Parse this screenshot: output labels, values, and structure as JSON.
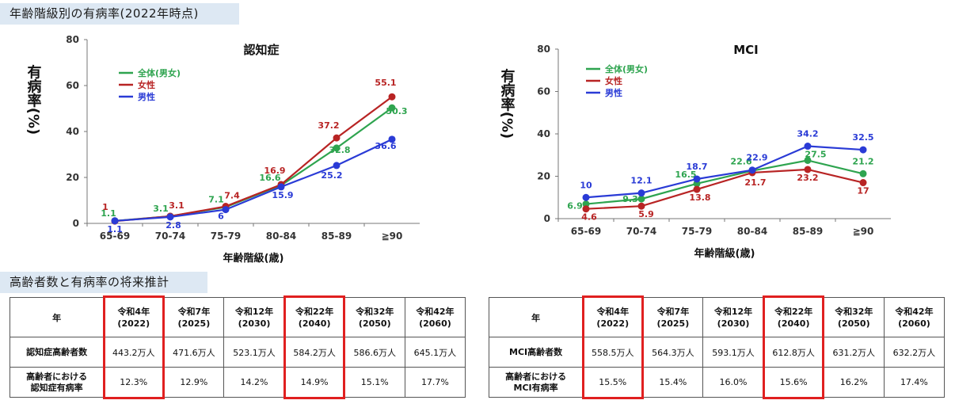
{
  "headings": {
    "prevalence": "年齢階級別の有病率(2022年時点)",
    "projection": "高齢者数と有病率の将来推計"
  },
  "colors": {
    "total": "#2ea44f",
    "female": "#b82424",
    "male": "#2a3bd6",
    "highlight": "#e02020"
  },
  "chart_data": [
    {
      "type": "line",
      "title": "認知症",
      "xlabel": "年齢階級(歳)",
      "ylabel": "有病率(%)",
      "categories": [
        "65-69",
        "70-74",
        "75-79",
        "80-84",
        "85-89",
        "≧90"
      ],
      "ylim": [
        0,
        80
      ],
      "yticks": [
        0,
        20,
        40,
        60,
        80
      ],
      "legend": "top-left",
      "series": [
        {
          "name": "全体(男女)",
          "color": "#2ea44f",
          "values": [
            1.1,
            3.1,
            7.1,
            16.6,
            32.8,
            50.3
          ]
        },
        {
          "name": "女性",
          "color": "#b82424",
          "values": [
            1.0,
            3.1,
            7.4,
            16.9,
            37.2,
            55.1
          ]
        },
        {
          "name": "男性",
          "color": "#2a3bd6",
          "values": [
            1.1,
            2.8,
            6.0,
            15.9,
            25.2,
            36.6
          ]
        }
      ]
    },
    {
      "type": "line",
      "title": "MCI",
      "xlabel": "年齢階級(歳)",
      "ylabel": "有病率(%)",
      "categories": [
        "65-69",
        "70-74",
        "75-79",
        "80-84",
        "85-89",
        "≧90"
      ],
      "ylim": [
        0,
        80
      ],
      "yticks": [
        0,
        20,
        40,
        60,
        80
      ],
      "legend": "top-left",
      "series": [
        {
          "name": "全体(男女)",
          "color": "#2ea44f",
          "values": [
            6.9,
            9.3,
            16.5,
            22.6,
            27.5,
            21.2
          ]
        },
        {
          "name": "女性",
          "color": "#b82424",
          "values": [
            4.6,
            5.9,
            13.8,
            21.7,
            23.2,
            17.0
          ]
        },
        {
          "name": "男性",
          "color": "#2a3bd6",
          "values": [
            10.0,
            12.1,
            18.7,
            22.9,
            34.2,
            32.5
          ]
        }
      ]
    }
  ],
  "tables": [
    {
      "year_header": "年",
      "years": [
        {
          "era": "令和4年",
          "ad": "(2022)"
        },
        {
          "era": "令和7年",
          "ad": "(2025)"
        },
        {
          "era": "令和12年",
          "ad": "(2030)"
        },
        {
          "era": "令和22年",
          "ad": "(2040)"
        },
        {
          "era": "令和32年",
          "ad": "(2050)"
        },
        {
          "era": "令和42年",
          "ad": "(2060)"
        }
      ],
      "rows": [
        {
          "label": "認知症高齢者数",
          "values": [
            "443.2万人",
            "471.6万人",
            "523.1万人",
            "584.2万人",
            "586.6万人",
            "645.1万人"
          ]
        },
        {
          "label": "高齢者における\n認知症有病率",
          "values": [
            "12.3%",
            "12.9%",
            "14.2%",
            "14.9%",
            "15.1%",
            "17.7%"
          ]
        }
      ],
      "highlighted_columns": [
        0,
        3
      ]
    },
    {
      "year_header": "年",
      "years": [
        {
          "era": "令和4年",
          "ad": "(2022)"
        },
        {
          "era": "令和7年",
          "ad": "(2025)"
        },
        {
          "era": "令和12年",
          "ad": "(2030)"
        },
        {
          "era": "令和22年",
          "ad": "(2040)"
        },
        {
          "era": "令和32年",
          "ad": "(2050)"
        },
        {
          "era": "令和42年",
          "ad": "(2060)"
        }
      ],
      "rows": [
        {
          "label": "MCI高齢者数",
          "values": [
            "558.5万人",
            "564.3万人",
            "593.1万人",
            "612.8万人",
            "631.2万人",
            "632.2万人"
          ]
        },
        {
          "label": "高齢者における\nMCI有病率",
          "values": [
            "15.5%",
            "15.4%",
            "16.0%",
            "15.6%",
            "16.2%",
            "17.4%"
          ]
        }
      ],
      "highlighted_columns": [
        0,
        3
      ]
    }
  ]
}
